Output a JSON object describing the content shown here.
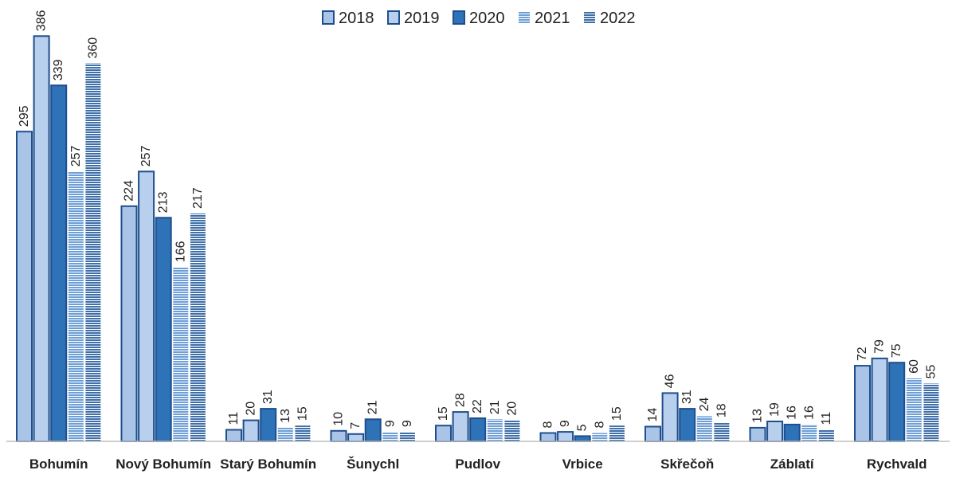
{
  "chart_data": {
    "type": "bar",
    "title": "",
    "xlabel": "",
    "ylabel": "",
    "ylim": [
      0,
      390
    ],
    "grid": false,
    "legend_position": "top-center",
    "categories": [
      "Bohumín",
      "Nový Bohumín",
      "Starý Bohumín",
      "Šunychl",
      "Pudlov",
      "Vrbice",
      "Skřečoň",
      "Záblatí",
      "Rychvald"
    ],
    "series": [
      {
        "name": "2018",
        "values": [
          295,
          224,
          11,
          10,
          15,
          8,
          14,
          13,
          72
        ],
        "fill": "#a9c4e6",
        "stroke": "#1f4e8c",
        "pattern": "solid"
      },
      {
        "name": "2019",
        "values": [
          386,
          257,
          20,
          7,
          28,
          9,
          46,
          19,
          79
        ],
        "fill": "#b8d0ee",
        "stroke": "#1f4e8c",
        "pattern": "solid"
      },
      {
        "name": "2020",
        "values": [
          339,
          213,
          31,
          21,
          22,
          5,
          31,
          16,
          75
        ],
        "fill": "#2e72b8",
        "stroke": "#1f4e8c",
        "pattern": "solid"
      },
      {
        "name": "2021",
        "values": [
          257,
          166,
          13,
          9,
          21,
          8,
          24,
          16,
          60
        ],
        "fill": "#5b93cf",
        "stroke": "#5b93cf",
        "pattern": "stripes-light"
      },
      {
        "name": "2022",
        "values": [
          360,
          217,
          15,
          9,
          20,
          15,
          18,
          11,
          55
        ],
        "fill": "#3f6fa8",
        "stroke": "#3f6fa8",
        "pattern": "stripes-dark"
      }
    ]
  }
}
